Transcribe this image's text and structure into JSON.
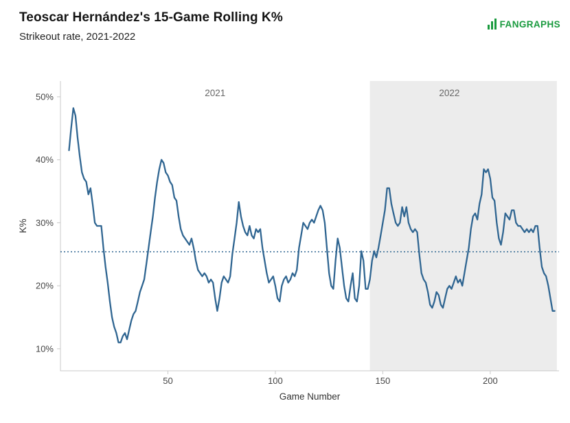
{
  "header": {
    "title": "Teoscar Hernández's 15-Game Rolling K%",
    "subtitle": "Strikeout rate, 2021-2022",
    "logo_text": "FANGRAPHS"
  },
  "colors": {
    "line": "#2f6591",
    "reference": "#2f6591",
    "band": "#ececec",
    "logo": "#189a3d",
    "tick_text": "#444444",
    "axis": "#c8c8c8",
    "annotation": "#666666"
  },
  "chart_data": {
    "type": "line",
    "title": "Teoscar Hernández's 15-Game Rolling K%",
    "subtitle": "Strikeout rate, 2021-2022",
    "xlabel": "Game Number",
    "ylabel": "K%",
    "xlim": [
      0,
      232
    ],
    "ylim": [
      6.5,
      52.5
    ],
    "grid": false,
    "legend": "none",
    "xticks": [
      {
        "value": 50,
        "label": "50"
      },
      {
        "value": 100,
        "label": "100"
      },
      {
        "value": 150,
        "label": "150"
      },
      {
        "value": 200,
        "label": "200"
      }
    ],
    "yticks": [
      {
        "value": 10,
        "label": "10%"
      },
      {
        "value": 20,
        "label": "20%"
      },
      {
        "value": 30,
        "label": "30%"
      },
      {
        "value": 40,
        "label": "40%"
      },
      {
        "value": 50,
        "label": "50%"
      }
    ],
    "reference_line": 25.4,
    "band": {
      "from": 144,
      "to": 231,
      "label": "2022 season shading"
    },
    "annotations": [
      {
        "label": "2021",
        "x": 72
      },
      {
        "label": "2022",
        "x": 181
      }
    ],
    "series": [
      {
        "name": "15-game rolling K%",
        "points": [
          [
            4,
            41.5
          ],
          [
            5,
            45
          ],
          [
            6,
            48.2
          ],
          [
            7,
            47
          ],
          [
            8,
            43.5
          ],
          [
            9,
            40.5
          ],
          [
            10,
            38
          ],
          [
            11,
            37
          ],
          [
            12,
            36.5
          ],
          [
            13,
            34.5
          ],
          [
            14,
            35.5
          ],
          [
            15,
            33
          ],
          [
            16,
            30
          ],
          [
            17,
            29.5
          ],
          [
            18,
            29.5
          ],
          [
            19,
            29.5
          ],
          [
            20,
            26
          ],
          [
            21,
            23
          ],
          [
            22,
            20.5
          ],
          [
            23,
            17.5
          ],
          [
            24,
            15
          ],
          [
            25,
            13.5
          ],
          [
            26,
            12.5
          ],
          [
            27,
            11
          ],
          [
            28,
            11
          ],
          [
            29,
            12
          ],
          [
            30,
            12.5
          ],
          [
            31,
            11.5
          ],
          [
            32,
            13
          ],
          [
            33,
            14.5
          ],
          [
            34,
            15.5
          ],
          [
            35,
            16
          ],
          [
            36,
            17.5
          ],
          [
            37,
            19
          ],
          [
            38,
            20
          ],
          [
            39,
            21
          ],
          [
            40,
            23.5
          ],
          [
            41,
            26
          ],
          [
            42,
            28.5
          ],
          [
            43,
            31
          ],
          [
            44,
            34
          ],
          [
            45,
            36.5
          ],
          [
            46,
            38.5
          ],
          [
            47,
            40
          ],
          [
            48,
            39.5
          ],
          [
            49,
            38
          ],
          [
            50,
            37.5
          ],
          [
            51,
            36.5
          ],
          [
            52,
            36
          ],
          [
            53,
            34
          ],
          [
            54,
            33.5
          ],
          [
            55,
            31
          ],
          [
            56,
            29
          ],
          [
            57,
            28
          ],
          [
            58,
            27.5
          ],
          [
            59,
            27
          ],
          [
            60,
            26.5
          ],
          [
            61,
            27.5
          ],
          [
            62,
            26
          ],
          [
            63,
            24
          ],
          [
            64,
            22.5
          ],
          [
            65,
            22
          ],
          [
            66,
            21.5
          ],
          [
            67,
            22
          ],
          [
            68,
            21.5
          ],
          [
            69,
            20.5
          ],
          [
            70,
            21
          ],
          [
            71,
            20.5
          ],
          [
            72,
            18
          ],
          [
            73,
            16
          ],
          [
            74,
            18
          ],
          [
            75,
            20.5
          ],
          [
            76,
            21.5
          ],
          [
            77,
            21
          ],
          [
            78,
            20.5
          ],
          [
            79,
            21.5
          ],
          [
            80,
            25
          ],
          [
            81,
            27.5
          ],
          [
            82,
            30
          ],
          [
            83,
            33.3
          ],
          [
            84,
            31
          ],
          [
            85,
            29.5
          ],
          [
            86,
            28.5
          ],
          [
            87,
            28
          ],
          [
            88,
            29.5
          ],
          [
            89,
            28
          ],
          [
            90,
            27.5
          ],
          [
            91,
            29
          ],
          [
            92,
            28.5
          ],
          [
            93,
            29
          ],
          [
            94,
            26
          ],
          [
            95,
            24
          ],
          [
            96,
            22
          ],
          [
            97,
            20.5
          ],
          [
            98,
            21
          ],
          [
            99,
            21.5
          ],
          [
            100,
            20
          ],
          [
            101,
            18
          ],
          [
            102,
            17.5
          ],
          [
            103,
            20
          ],
          [
            104,
            21
          ],
          [
            105,
            21.5
          ],
          [
            106,
            20.5
          ],
          [
            107,
            21
          ],
          [
            108,
            22
          ],
          [
            109,
            21.5
          ],
          [
            110,
            22.5
          ],
          [
            111,
            26
          ],
          [
            112,
            28
          ],
          [
            113,
            30
          ],
          [
            114,
            29.5
          ],
          [
            115,
            29
          ],
          [
            116,
            30
          ],
          [
            117,
            30.5
          ],
          [
            118,
            30
          ],
          [
            119,
            31
          ],
          [
            120,
            32
          ],
          [
            121,
            32.7
          ],
          [
            122,
            32
          ],
          [
            123,
            30
          ],
          [
            124,
            26
          ],
          [
            125,
            22
          ],
          [
            126,
            20
          ],
          [
            127,
            19.5
          ],
          [
            128,
            24
          ],
          [
            129,
            27.5
          ],
          [
            130,
            26
          ],
          [
            131,
            23
          ],
          [
            132,
            20
          ],
          [
            133,
            18
          ],
          [
            134,
            17.5
          ],
          [
            135,
            20
          ],
          [
            136,
            22
          ],
          [
            137,
            18
          ],
          [
            138,
            17.5
          ],
          [
            139,
            20
          ],
          [
            140,
            25.5
          ],
          [
            141,
            24
          ],
          [
            142,
            19.5
          ],
          [
            143,
            19.5
          ],
          [
            144,
            21
          ],
          [
            145,
            24
          ],
          [
            146,
            25.5
          ],
          [
            147,
            24.5
          ],
          [
            148,
            26
          ],
          [
            149,
            28
          ],
          [
            150,
            30
          ],
          [
            151,
            32
          ],
          [
            152,
            35.5
          ],
          [
            153,
            35.5
          ],
          [
            154,
            33
          ],
          [
            155,
            31.5
          ],
          [
            156,
            30
          ],
          [
            157,
            29.5
          ],
          [
            158,
            30
          ],
          [
            159,
            32.5
          ],
          [
            160,
            31
          ],
          [
            161,
            32.5
          ],
          [
            162,
            30
          ],
          [
            163,
            29
          ],
          [
            164,
            28.5
          ],
          [
            165,
            29
          ],
          [
            166,
            28.5
          ],
          [
            167,
            25
          ],
          [
            168,
            22
          ],
          [
            169,
            21
          ],
          [
            170,
            20.5
          ],
          [
            171,
            19
          ],
          [
            172,
            17
          ],
          [
            173,
            16.5
          ],
          [
            174,
            17.5
          ],
          [
            175,
            19
          ],
          [
            176,
            18.5
          ],
          [
            177,
            17
          ],
          [
            178,
            16.5
          ],
          [
            179,
            18
          ],
          [
            180,
            19.5
          ],
          [
            181,
            20
          ],
          [
            182,
            19.5
          ],
          [
            183,
            20.5
          ],
          [
            184,
            21.5
          ],
          [
            185,
            20.5
          ],
          [
            186,
            21
          ],
          [
            187,
            20
          ],
          [
            188,
            22
          ],
          [
            189,
            24
          ],
          [
            190,
            26
          ],
          [
            191,
            29
          ],
          [
            192,
            31
          ],
          [
            193,
            31.5
          ],
          [
            194,
            30.5
          ],
          [
            195,
            33
          ],
          [
            196,
            34.5
          ],
          [
            197,
            38.5
          ],
          [
            198,
            38
          ],
          [
            199,
            38.5
          ],
          [
            200,
            37
          ],
          [
            201,
            34
          ],
          [
            202,
            33.5
          ],
          [
            203,
            30
          ],
          [
            204,
            27.5
          ],
          [
            205,
            26.5
          ],
          [
            206,
            28.5
          ],
          [
            207,
            31.5
          ],
          [
            208,
            31
          ],
          [
            209,
            30.5
          ],
          [
            210,
            32
          ],
          [
            211,
            32
          ],
          [
            212,
            30
          ],
          [
            213,
            29.5
          ],
          [
            214,
            29.5
          ],
          [
            215,
            29
          ],
          [
            216,
            28.5
          ],
          [
            217,
            29
          ],
          [
            218,
            28.5
          ],
          [
            219,
            29
          ],
          [
            220,
            28.5
          ],
          [
            221,
            29.5
          ],
          [
            222,
            29.5
          ],
          [
            223,
            26
          ],
          [
            224,
            23
          ],
          [
            225,
            22
          ],
          [
            226,
            21.5
          ],
          [
            227,
            20
          ],
          [
            228,
            18
          ],
          [
            229,
            16
          ],
          [
            230,
            16
          ]
        ]
      }
    ]
  }
}
